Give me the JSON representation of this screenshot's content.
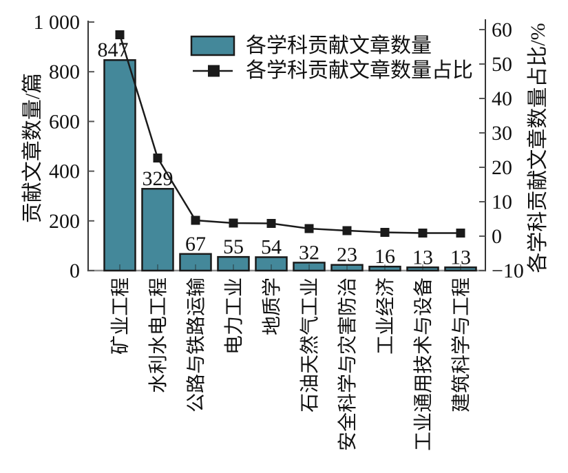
{
  "chart_data": {
    "type": "bar+line",
    "title": "",
    "categories": [
      "矿业工程",
      "水利水电工程",
      "公路与铁路运输",
      "电力工业",
      "地质学",
      "石油天然气工业",
      "安全科学与灾害防治",
      "工业经济",
      "工业通用技术与设备",
      "建筑科学与工程"
    ],
    "series": [
      {
        "name": "各学科贡献文章数量",
        "type": "bar",
        "yaxis": "left",
        "values": [
          847,
          329,
          67,
          55,
          54,
          32,
          23,
          16,
          13,
          13
        ],
        "color": "#44889a"
      },
      {
        "name": "各学科贡献文章数量占比",
        "type": "line",
        "yaxis": "right",
        "marker": "square",
        "color": "#1a1a1a",
        "values": [
          58.5,
          22.7,
          4.6,
          3.8,
          3.7,
          2.2,
          1.6,
          1.1,
          0.9,
          0.9
        ],
        "values_note": "percent, estimated from plot"
      }
    ],
    "bar_value_labels": [
      "847",
      "329",
      "67",
      "55",
      "54",
      "32",
      "23",
      "16",
      "13",
      "13"
    ],
    "left_axis": {
      "title": "贡献文章数量/篇",
      "tick_values": [
        0,
        200,
        400,
        600,
        800,
        1000
      ],
      "tick_labels": [
        "0",
        "200",
        "400",
        "600",
        "800",
        "1 000"
      ],
      "range": [
        0,
        1000
      ]
    },
    "right_axis": {
      "title": "各学科贡献文章数量占比/%",
      "tick_values": [
        -10,
        0,
        10,
        20,
        30,
        40,
        50,
        60
      ],
      "tick_labels": [
        "−10",
        "0",
        "10",
        "20",
        "30",
        "40",
        "50",
        "60"
      ],
      "range": [
        -10,
        60
      ]
    },
    "legend": {
      "position": "inside-top-center",
      "entries": [
        {
          "label": "各学科贡献文章数量",
          "swatch": "bar"
        },
        {
          "label": "各学科贡献文章数量占比",
          "swatch": "line-marker"
        }
      ]
    },
    "grid": false,
    "colors": {
      "bar_fill": "#44889a",
      "bar_border": "#1a1a1a",
      "line": "#1a1a1a",
      "axis": "#333333",
      "bottom_axis": "#8f8f8f",
      "text": "#111111",
      "background": "#ffffff"
    }
  }
}
